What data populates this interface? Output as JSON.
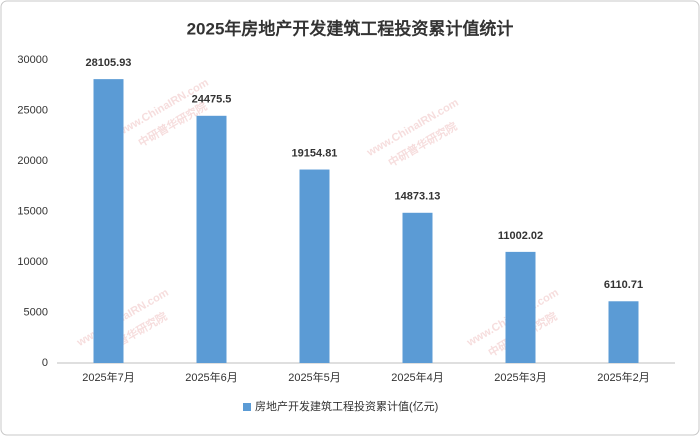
{
  "chart_data": {
    "type": "bar",
    "title": "2025年房地产开发建筑工程投资累计值统计",
    "categories": [
      "2025年7月",
      "2025年6月",
      "2025年5月",
      "2025年4月",
      "2025年3月",
      "2025年2月"
    ],
    "series": [
      {
        "name": "房地产开发建筑工程投资累计值(亿元)",
        "color": "#5b9bd5",
        "values": [
          28105.93,
          24475.5,
          19154.81,
          14873.13,
          11002.02,
          6110.71
        ]
      }
    ],
    "ylim": [
      0,
      30000
    ],
    "yticks": [
      0,
      5000,
      10000,
      15000,
      20000,
      25000,
      30000
    ],
    "grid": false,
    "legend": "bottom",
    "watermark": [
      "www.ChinaIRN.com",
      "中研普华研究院"
    ]
  }
}
